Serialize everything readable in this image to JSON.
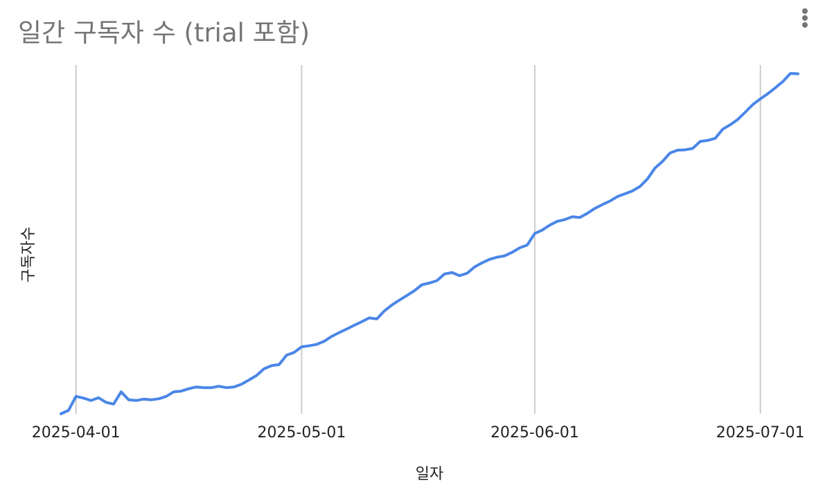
{
  "chart_data": {
    "type": "line",
    "title": "일간 구독자 수 (trial 포함)",
    "xlabel": "일자",
    "ylabel": "구독자수",
    "x_ticks": [
      "2025-04-01",
      "2025-05-01",
      "2025-06-01",
      "2025-07-01"
    ],
    "x_range": [
      "2025-03-30",
      "2025-07-06"
    ],
    "y_ticks_shown": false,
    "y_range": [
      0,
      100
    ],
    "grid": "vertical",
    "legend": "none",
    "series": [
      {
        "color": "#4a86e8",
        "points": [
          [
            "2025-03-30",
            0.0
          ],
          [
            "2025-03-31",
            1.0
          ],
          [
            "2025-04-01",
            5.0
          ],
          [
            "2025-04-02",
            4.5
          ],
          [
            "2025-04-03",
            3.8
          ],
          [
            "2025-04-04",
            4.6
          ],
          [
            "2025-04-05",
            3.3
          ],
          [
            "2025-04-06",
            2.8
          ],
          [
            "2025-04-07",
            6.3
          ],
          [
            "2025-04-08",
            4.0
          ],
          [
            "2025-04-09",
            3.8
          ],
          [
            "2025-04-10",
            4.2
          ],
          [
            "2025-04-11",
            4.0
          ],
          [
            "2025-04-12",
            4.3
          ],
          [
            "2025-04-13",
            5.0
          ],
          [
            "2025-04-14",
            6.3
          ],
          [
            "2025-04-15",
            6.5
          ],
          [
            "2025-04-16",
            7.2
          ],
          [
            "2025-04-17",
            7.7
          ],
          [
            "2025-04-18",
            7.5
          ],
          [
            "2025-04-19",
            7.5
          ],
          [
            "2025-04-20",
            7.9
          ],
          [
            "2025-04-21",
            7.5
          ],
          [
            "2025-04-22",
            7.7
          ],
          [
            "2025-04-23",
            8.5
          ],
          [
            "2025-04-24",
            9.7
          ],
          [
            "2025-04-25",
            11.0
          ],
          [
            "2025-04-26",
            12.9
          ],
          [
            "2025-04-27",
            13.8
          ],
          [
            "2025-04-28",
            14.1
          ],
          [
            "2025-04-29",
            16.8
          ],
          [
            "2025-04-30",
            17.6
          ],
          [
            "2025-05-01",
            19.2
          ],
          [
            "2025-05-02",
            19.5
          ],
          [
            "2025-05-03",
            19.9
          ],
          [
            "2025-05-04",
            20.8
          ],
          [
            "2025-05-05",
            22.2
          ],
          [
            "2025-05-06",
            23.3
          ],
          [
            "2025-05-07",
            24.3
          ],
          [
            "2025-05-08",
            25.4
          ],
          [
            "2025-05-09",
            26.4
          ],
          [
            "2025-05-10",
            27.5
          ],
          [
            "2025-05-11",
            27.2
          ],
          [
            "2025-05-12",
            29.5
          ],
          [
            "2025-05-13",
            31.2
          ],
          [
            "2025-05-14",
            32.6
          ],
          [
            "2025-05-15",
            33.9
          ],
          [
            "2025-05-16",
            35.3
          ],
          [
            "2025-05-17",
            37.0
          ],
          [
            "2025-05-18",
            37.5
          ],
          [
            "2025-05-19",
            38.2
          ],
          [
            "2025-05-20",
            40.1
          ],
          [
            "2025-05-21",
            40.5
          ],
          [
            "2025-05-22",
            39.6
          ],
          [
            "2025-05-23",
            40.3
          ],
          [
            "2025-05-24",
            42.1
          ],
          [
            "2025-05-25",
            43.3
          ],
          [
            "2025-05-26",
            44.3
          ],
          [
            "2025-05-27",
            44.9
          ],
          [
            "2025-05-28",
            45.3
          ],
          [
            "2025-05-29",
            46.3
          ],
          [
            "2025-05-30",
            47.6
          ],
          [
            "2025-05-31",
            48.4
          ],
          [
            "2025-06-01",
            51.7
          ],
          [
            "2025-06-02",
            52.7
          ],
          [
            "2025-06-03",
            54.1
          ],
          [
            "2025-06-04",
            55.2
          ],
          [
            "2025-06-05",
            55.7
          ],
          [
            "2025-06-06",
            56.5
          ],
          [
            "2025-06-07",
            56.3
          ],
          [
            "2025-06-08",
            57.5
          ],
          [
            "2025-06-09",
            58.9
          ],
          [
            "2025-06-10",
            60.0
          ],
          [
            "2025-06-11",
            61.0
          ],
          [
            "2025-06-12",
            62.3
          ],
          [
            "2025-06-13",
            63.1
          ],
          [
            "2025-06-14",
            63.9
          ],
          [
            "2025-06-15",
            65.2
          ],
          [
            "2025-06-16",
            67.4
          ],
          [
            "2025-06-17",
            70.5
          ],
          [
            "2025-06-18",
            72.4
          ],
          [
            "2025-06-19",
            74.8
          ],
          [
            "2025-06-20",
            75.6
          ],
          [
            "2025-06-21",
            75.7
          ],
          [
            "2025-06-22",
            76.1
          ],
          [
            "2025-06-23",
            78.1
          ],
          [
            "2025-06-24",
            78.4
          ],
          [
            "2025-06-25",
            79.0
          ],
          [
            "2025-06-26",
            81.6
          ],
          [
            "2025-06-27",
            82.9
          ],
          [
            "2025-06-28",
            84.4
          ],
          [
            "2025-06-29",
            86.5
          ],
          [
            "2025-06-30",
            88.7
          ],
          [
            "2025-07-01",
            90.3
          ],
          [
            "2025-07-02",
            91.8
          ],
          [
            "2025-07-03",
            93.5
          ],
          [
            "2025-07-04",
            95.3
          ],
          [
            "2025-07-05",
            97.6
          ],
          [
            "2025-07-06",
            97.5
          ]
        ]
      }
    ]
  }
}
